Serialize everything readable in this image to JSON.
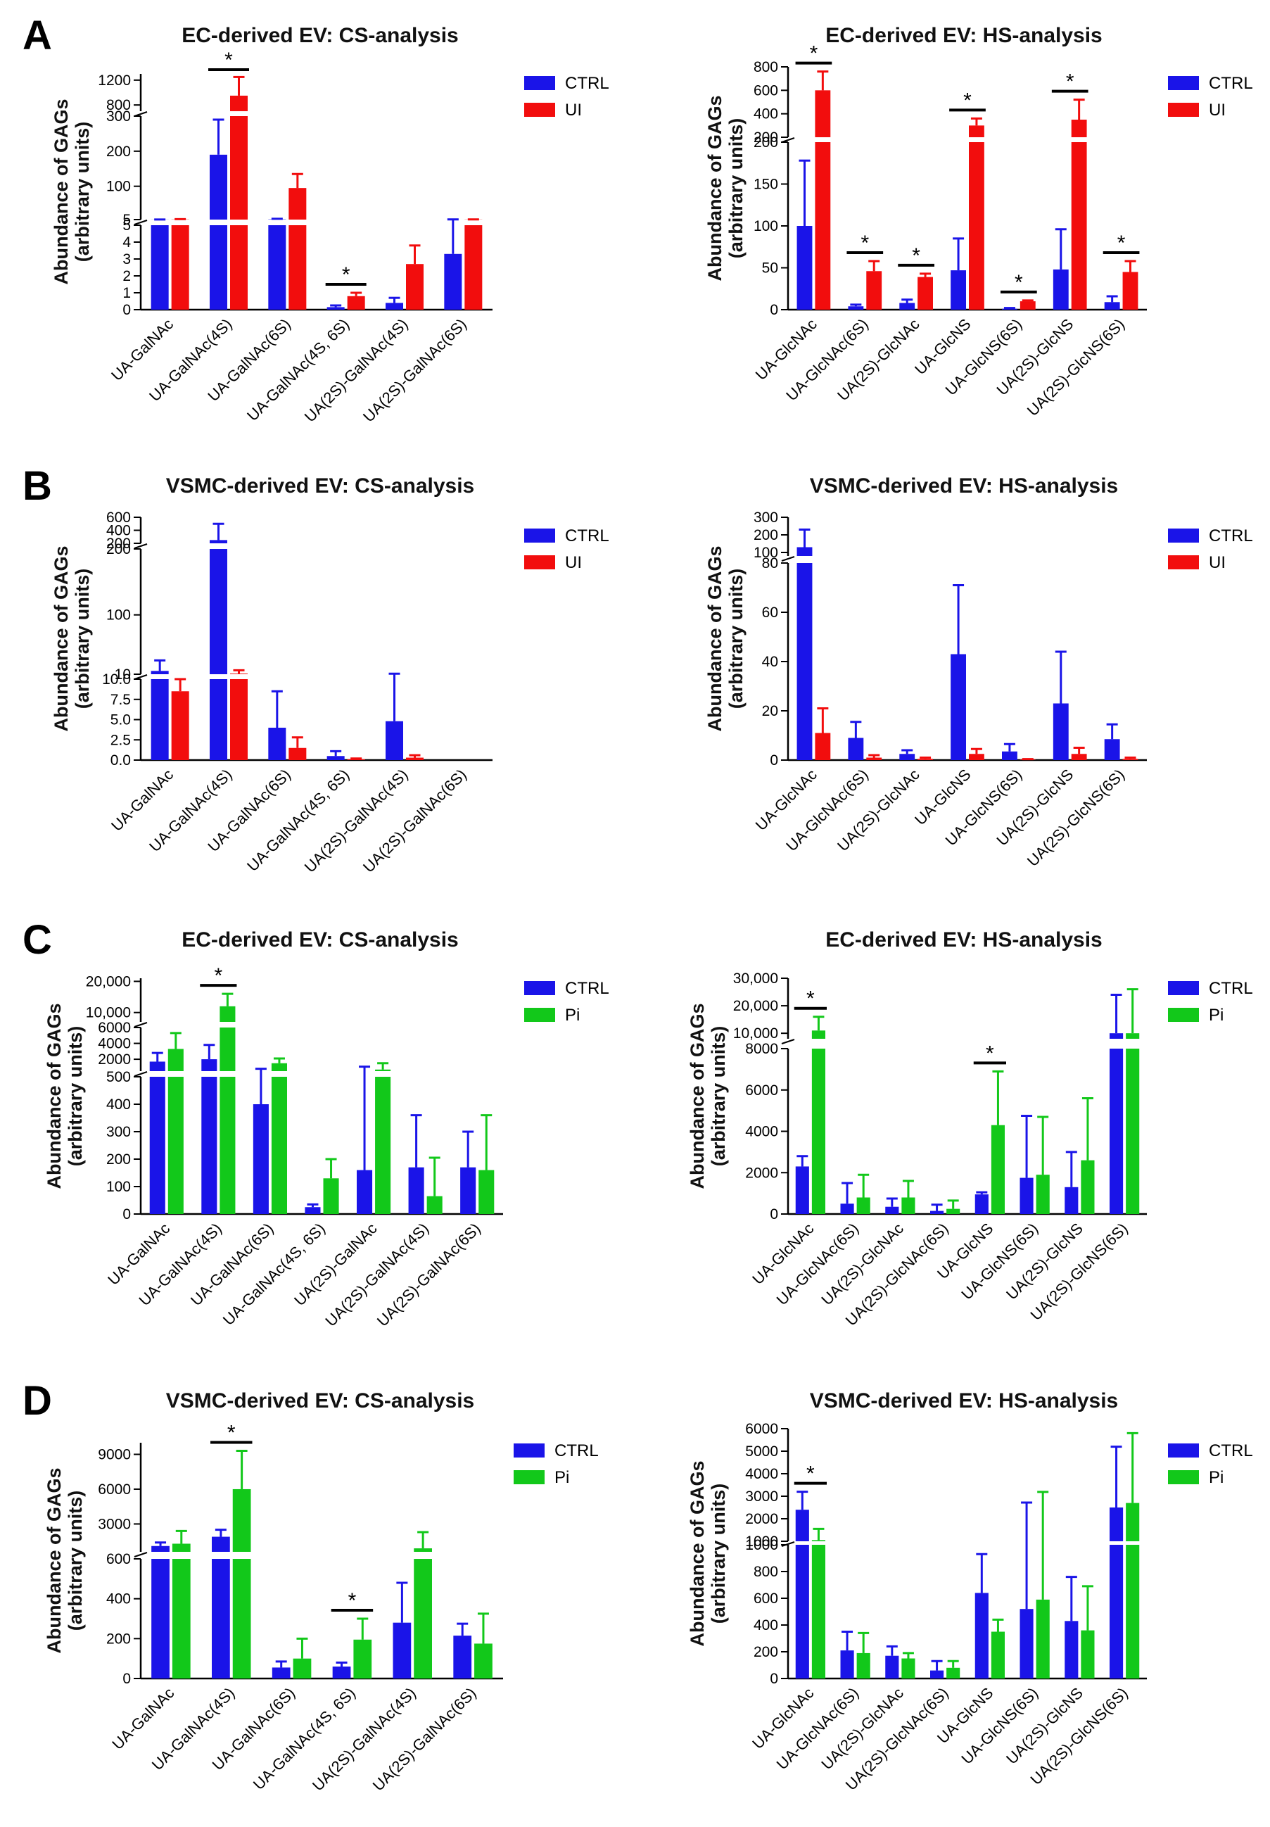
{
  "colors": {
    "ctrl": "#1a14e8",
    "ui": "#f20d0d",
    "pi": "#12c81a"
  },
  "ylabel_line1": "Abundance of GAGs",
  "ylabel_line2": "(arbitrary units)",
  "chart_data": [
    {
      "panel": "A",
      "type": "bar",
      "title": "EC-derived EV: CS-analysis",
      "categories": [
        "UA-GalNAc",
        "UA-GalNAc(4S)",
        "UA-GalNAc(6S)",
        "UA-GalNAc(4S, 6S)",
        "UA(2S)-GalNAc(4S)",
        "UA(2S)-GalNAc(6S)"
      ],
      "series": [
        {
          "name": "CTRL",
          "color": "ctrl",
          "values": [
            5.2,
            190,
            5.8,
            0.15,
            0.4,
            3.3
          ],
          "errors": [
            0.1,
            100,
            1.5,
            0.1,
            0.3,
            2.2
          ]
        },
        {
          "name": "UI",
          "color": "ui",
          "values": [
            5.5,
            950,
            95,
            0.8,
            2.7,
            5.4
          ],
          "errors": [
            0.8,
            300,
            40,
            0.2,
            1.1,
            0.2
          ]
        }
      ],
      "significant": [
        1,
        3
      ],
      "axis_segments": [
        {
          "min": 0,
          "max": 5,
          "ticks": [
            0,
            1,
            2,
            3,
            4,
            5
          ],
          "labels": [
            "0",
            "1",
            "2",
            "3",
            "4",
            "5"
          ]
        },
        {
          "min": 5,
          "max": 300,
          "ticks": [
            5,
            100,
            200,
            300
          ],
          "labels": [
            "5",
            "100",
            "200",
            "300"
          ]
        },
        {
          "min": 700,
          "max": 1300,
          "ticks": [
            800,
            1200
          ],
          "labels": [
            "800",
            "1200"
          ]
        }
      ]
    },
    {
      "panel": "",
      "type": "bar",
      "title": "EC-derived EV: HS-analysis",
      "categories": [
        "UA-GlcNAc",
        "UA-GlcNAc(6S)",
        "UA(2S)-GlcNAc",
        "UA-GlcNS",
        "UA-GlcNS(6S)",
        "UA(2S)-GlcNS",
        "UA(2S)-GlcNS(6S)"
      ],
      "series": [
        {
          "name": "CTRL",
          "color": "ctrl",
          "values": [
            100,
            4,
            8,
            47,
            1,
            48,
            9
          ],
          "errors": [
            78,
            2,
            4,
            38,
            1,
            48,
            7
          ]
        },
        {
          "name": "UI",
          "color": "ui",
          "values": [
            600,
            46,
            39,
            300,
            10,
            350,
            45
          ],
          "errors": [
            160,
            12,
            4,
            60,
            1,
            170,
            13
          ]
        }
      ],
      "significant": [
        0,
        1,
        2,
        3,
        4,
        5,
        6
      ],
      "axis_segments": [
        {
          "min": 0,
          "max": 200,
          "ticks": [
            0,
            50,
            100,
            150,
            200
          ],
          "labels": [
            "0",
            "50",
            "100",
            "150",
            "200"
          ]
        },
        {
          "min": 200,
          "max": 800,
          "ticks": [
            200,
            400,
            600,
            800
          ],
          "labels": [
            "200",
            "400",
            "600",
            "800"
          ]
        }
      ]
    },
    {
      "panel": "B",
      "type": "bar",
      "title": "VSMC-derived EV: CS-analysis",
      "categories": [
        "UA-GalNAc",
        "UA-GalNAc(4S)",
        "UA-GalNAc(6S)",
        "UA-GalNAc(4S, 6S)",
        "UA(2S)-GalNAc(4S)",
        "UA(2S)-GalNAc(6S)"
      ],
      "series": [
        {
          "name": "CTRL",
          "color": "ctrl",
          "values": [
            15,
            250,
            4,
            0.5,
            4.8,
            0
          ],
          "errors": [
            16,
            250,
            4.5,
            0.6,
            6,
            0
          ]
        },
        {
          "name": "UI",
          "color": "ui",
          "values": [
            8.5,
            11,
            1.5,
            0.1,
            0.3,
            0
          ],
          "errors": [
            1.5,
            5,
            1.3,
            0.1,
            0.3,
            0
          ]
        }
      ],
      "significant": [],
      "axis_segments": [
        {
          "min": 0,
          "max": 10,
          "ticks": [
            0,
            2.5,
            5,
            7.5,
            10
          ],
          "labels": [
            "0.0",
            "2.5",
            "5.0",
            "7.5",
            "10.0"
          ]
        },
        {
          "min": 10,
          "max": 200,
          "ticks": [
            10,
            100,
            200
          ],
          "labels": [
            "10",
            "100",
            "200"
          ]
        },
        {
          "min": 200,
          "max": 600,
          "ticks": [
            200,
            400,
            600
          ],
          "labels": [
            "200",
            "400",
            "600"
          ]
        }
      ]
    },
    {
      "panel": "",
      "type": "bar",
      "title": "VSMC-derived EV: HS-analysis",
      "categories": [
        "UA-GlcNAc",
        "UA-GlcNAc(6S)",
        "UA(2S)-GlcNAc",
        "UA-GlcNS",
        "UA-GlcNS(6S)",
        "UA(2S)-GlcNS",
        "UA(2S)-GlcNS(6S)"
      ],
      "series": [
        {
          "name": "CTRL",
          "color": "ctrl",
          "values": [
            130,
            9,
            2.5,
            43,
            3.5,
            23,
            8.5
          ],
          "errors": [
            100,
            6.5,
            1.5,
            28,
            3,
            21,
            6
          ]
        },
        {
          "name": "UI",
          "color": "ui",
          "values": [
            11,
            1,
            0.5,
            2.5,
            0.2,
            2.5,
            0.5
          ],
          "errors": [
            10,
            1,
            0.5,
            2,
            0.2,
            2.5,
            0.5
          ]
        }
      ],
      "significant": [],
      "axis_segments": [
        {
          "min": 0,
          "max": 80,
          "ticks": [
            0,
            20,
            40,
            60,
            80
          ],
          "labels": [
            "0",
            "20",
            "40",
            "60",
            "80"
          ]
        },
        {
          "min": 80,
          "max": 300,
          "ticks": [
            100,
            200,
            300
          ],
          "labels": [
            "100",
            "200",
            "300"
          ]
        }
      ]
    },
    {
      "panel": "C",
      "type": "bar",
      "title": "EC-derived EV: CS-analysis",
      "categories": [
        "UA-GalNAc",
        "UA-GalNAc(4S)",
        "UA-GalNAc(6S)",
        "UA-GalNAc(4S, 6S)",
        "UA(2S)-GalNAc",
        "UA(2S)-GalNAc(4S)",
        "UA(2S)-GalNAc(6S)"
      ],
      "series": [
        {
          "name": "CTRL",
          "color": "ctrl",
          "values": [
            1700,
            2000,
            400,
            25,
            160,
            170,
            170
          ],
          "errors": [
            1100,
            1800,
            400,
            10,
            900,
            190,
            130
          ]
        },
        {
          "name": "Pi",
          "color": "pi",
          "values": [
            3300,
            12000,
            1500,
            130,
            700,
            65,
            160
          ],
          "errors": [
            2000,
            4000,
            600,
            70,
            800,
            140,
            200
          ]
        }
      ],
      "significant": [
        1
      ],
      "axis_segments": [
        {
          "min": 0,
          "max": 500,
          "ticks": [
            0,
            100,
            200,
            300,
            400,
            500
          ],
          "labels": [
            "0",
            "100",
            "200",
            "300",
            "400",
            "500"
          ]
        },
        {
          "min": 500,
          "max": 6000,
          "ticks": [
            2000,
            4000,
            6000
          ],
          "labels": [
            "2000",
            "4000",
            "6000"
          ]
        },
        {
          "min": 7000,
          "max": 21000,
          "ticks": [
            10000,
            20000
          ],
          "labels": [
            "10,000",
            "20,000"
          ]
        }
      ]
    },
    {
      "panel": "",
      "type": "bar",
      "title": "EC-derived EV: HS-analysis",
      "categories": [
        "UA-GlcNAc",
        "UA-GlcNAc(6S)",
        "UA(2S)-GlcNAc",
        "UA(2S)-GlcNAc(6S)",
        "UA-GlcNS",
        "UA-GlcNS(6S)",
        "UA(2S)-GlcNS",
        "UA(2S)-GlcNS(6S)"
      ],
      "series": [
        {
          "name": "CTRL",
          "color": "ctrl",
          "values": [
            2300,
            500,
            350,
            150,
            950,
            1750,
            1300,
            10000
          ],
          "errors": [
            500,
            1000,
            400,
            300,
            100,
            3000,
            1700,
            14000
          ]
        },
        {
          "name": "Pi",
          "color": "pi",
          "values": [
            11000,
            800,
            800,
            250,
            4300,
            1900,
            2600,
            10000
          ],
          "errors": [
            5000,
            1100,
            800,
            400,
            2600,
            2800,
            3000,
            16000
          ]
        }
      ],
      "significant": [
        0,
        4
      ],
      "axis_segments": [
        {
          "min": 0,
          "max": 8000,
          "ticks": [
            0,
            2000,
            4000,
            6000,
            8000
          ],
          "labels": [
            "0",
            "2000",
            "4000",
            "6000",
            "8000"
          ]
        },
        {
          "min": 8000,
          "max": 30000,
          "ticks": [
            10000,
            20000,
            30000
          ],
          "labels": [
            "10,000",
            "20,000",
            "30,000"
          ]
        }
      ]
    },
    {
      "panel": "D",
      "type": "bar",
      "title": "VSMC-derived EV: CS-analysis",
      "categories": [
        "UA-GalNAc",
        "UA-GalNAc(4S)",
        "UA-GalNAc(6S)",
        "UA-GalNAc(4S, 6S)",
        "UA(2S)-GalNAc(4S)",
        "UA(2S)-GalNAc(6S)"
      ],
      "series": [
        {
          "name": "CTRL",
          "color": "ctrl",
          "values": [
            1100,
            1900,
            55,
            60,
            280,
            215
          ],
          "errors": [
            300,
            600,
            30,
            20,
            200,
            60
          ]
        },
        {
          "name": "Pi",
          "color": "pi",
          "values": [
            1300,
            6000,
            100,
            195,
            900,
            175
          ],
          "errors": [
            1100,
            3300,
            100,
            105,
            1400,
            150
          ]
        }
      ],
      "significant": [
        1,
        3
      ],
      "axis_segments": [
        {
          "min": 0,
          "max": 600,
          "ticks": [
            0,
            200,
            400,
            600
          ],
          "labels": [
            "0",
            "200",
            "400",
            "600"
          ]
        },
        {
          "min": 600,
          "max": 10000,
          "ticks": [
            3000,
            6000,
            9000
          ],
          "labels": [
            "3000",
            "6000",
            "9000"
          ]
        }
      ]
    },
    {
      "panel": "",
      "type": "bar",
      "title": "VSMC-derived EV: HS-analysis",
      "categories": [
        "UA-GlcNAc",
        "UA-GlcNAc(6S)",
        "UA(2S)-GlcNAc",
        "UA(2S)-GlcNAc(6S)",
        "UA-GlcNS",
        "UA-GlcNS(6S)",
        "UA(2S)-GlcNS",
        "UA(2S)-GlcNS(6S)"
      ],
      "series": [
        {
          "name": "CTRL",
          "color": "ctrl",
          "values": [
            2400,
            210,
            170,
            60,
            640,
            520,
            430,
            2500
          ],
          "errors": [
            800,
            140,
            70,
            70,
            290,
            2200,
            330,
            2700
          ]
        },
        {
          "name": "Pi",
          "color": "pi",
          "values": [
            1050,
            190,
            150,
            80,
            350,
            590,
            360,
            2700
          ],
          "errors": [
            500,
            150,
            40,
            50,
            90,
            2600,
            330,
            3100
          ]
        }
      ],
      "significant": [
        0
      ],
      "axis_segments": [
        {
          "min": 0,
          "max": 1000,
          "ticks": [
            0,
            200,
            400,
            600,
            800,
            1000
          ],
          "labels": [
            "0",
            "200",
            "400",
            "600",
            "800",
            "1000"
          ]
        },
        {
          "min": 1000,
          "max": 6000,
          "ticks": [
            1000,
            2000,
            3000,
            4000,
            5000,
            6000
          ],
          "labels": [
            "1000",
            "2000",
            "3000",
            "4000",
            "5000",
            "6000"
          ]
        }
      ]
    }
  ]
}
